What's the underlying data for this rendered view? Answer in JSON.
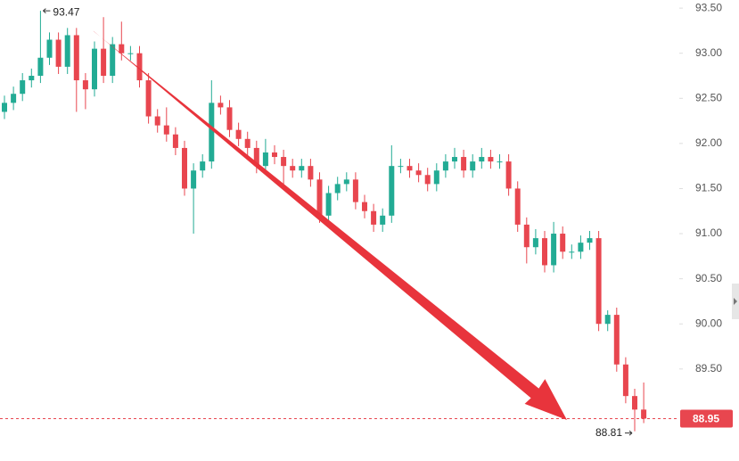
{
  "chart_data": {
    "type": "candlestick",
    "open": [
      92.35,
      92.45,
      92.55,
      92.7,
      92.75,
      92.95,
      93.15,
      92.85,
      93.2,
      92.7,
      92.6,
      93.05,
      92.75,
      93.1,
      93.0,
      93.0,
      92.7,
      92.3,
      92.2,
      92.1,
      91.95,
      91.5,
      91.7,
      91.8,
      92.45,
      92.4,
      92.15,
      92.05,
      91.95,
      91.75,
      91.9,
      91.85,
      91.75,
      91.7,
      91.75,
      91.6,
      91.2,
      91.45,
      91.55,
      91.6,
      91.35,
      91.25,
      91.1,
      91.2,
      91.75,
      91.75,
      91.7,
      91.65,
      91.55,
      91.7,
      91.8,
      91.85,
      91.7,
      91.8,
      91.85,
      91.8,
      91.8,
      91.5,
      91.1,
      90.85,
      90.95,
      90.65,
      91.0,
      90.8,
      90.8,
      90.9,
      90.95,
      90.0,
      90.1,
      89.55,
      89.2,
      89.05
    ],
    "high": [
      92.53,
      92.63,
      92.78,
      92.83,
      93.47,
      93.23,
      93.23,
      93.28,
      93.28,
      92.78,
      93.13,
      93.4,
      93.18,
      93.35,
      93.08,
      93.08,
      92.78,
      92.38,
      92.4,
      92.18,
      92.03,
      91.78,
      91.88,
      92.7,
      92.53,
      92.48,
      92.23,
      92.13,
      92.03,
      92.05,
      91.98,
      91.93,
      91.83,
      91.83,
      91.83,
      91.68,
      91.53,
      91.63,
      91.68,
      91.68,
      91.43,
      91.33,
      91.28,
      91.98,
      91.83,
      91.83,
      91.78,
      91.73,
      91.78,
      91.88,
      91.95,
      91.93,
      91.88,
      91.95,
      91.93,
      91.88,
      91.88,
      91.58,
      91.18,
      91.05,
      91.03,
      91.13,
      91.08,
      90.88,
      90.98,
      91.03,
      91.03,
      90.15,
      90.18,
      89.63,
      89.28,
      89.35
    ],
    "low": [
      92.27,
      92.37,
      92.47,
      92.62,
      92.67,
      92.87,
      92.77,
      92.77,
      92.35,
      92.38,
      92.52,
      92.67,
      92.67,
      92.92,
      92.92,
      92.62,
      92.22,
      92.12,
      92.02,
      91.87,
      91.42,
      91.0,
      91.62,
      91.72,
      92.32,
      92.07,
      91.97,
      91.87,
      91.67,
      91.67,
      91.77,
      91.5,
      91.62,
      91.62,
      91.52,
      91.12,
      91.12,
      91.37,
      91.47,
      91.27,
      91.17,
      91.02,
      91.02,
      91.12,
      91.67,
      91.62,
      91.57,
      91.47,
      91.47,
      91.62,
      91.72,
      91.62,
      91.62,
      91.72,
      91.72,
      91.72,
      91.42,
      91.02,
      90.67,
      90.77,
      90.57,
      90.57,
      90.72,
      90.72,
      90.72,
      90.82,
      89.92,
      89.92,
      89.47,
      89.12,
      88.81,
      88.9
    ],
    "close": [
      92.45,
      92.55,
      92.7,
      92.75,
      92.95,
      93.15,
      92.85,
      93.2,
      92.7,
      92.6,
      93.05,
      92.75,
      93.1,
      93.0,
      93.0,
      92.7,
      92.3,
      92.2,
      92.1,
      91.95,
      91.5,
      91.7,
      91.8,
      92.45,
      92.4,
      92.15,
      92.05,
      91.95,
      91.75,
      91.9,
      91.85,
      91.75,
      91.7,
      91.75,
      91.6,
      91.2,
      91.45,
      91.55,
      91.6,
      91.35,
      91.25,
      91.1,
      91.2,
      91.75,
      91.75,
      91.7,
      91.65,
      91.55,
      91.7,
      91.8,
      91.85,
      91.7,
      91.8,
      91.85,
      91.8,
      91.8,
      91.5,
      91.1,
      90.85,
      90.95,
      90.65,
      91.0,
      90.8,
      90.8,
      90.9,
      90.95,
      90.0,
      90.1,
      89.55,
      89.2,
      89.05,
      88.95
    ],
    "up_color": "#22ab94",
    "down_color": "#e8464f",
    "ylim": [
      88.48,
      93.59
    ],
    "yticks": [
      {
        "value": 89.5,
        "label": "89.50"
      },
      {
        "value": 90,
        "label": "90.00"
      },
      {
        "value": 90.5,
        "label": "90.50"
      },
      {
        "value": 91,
        "label": "91.00"
      },
      {
        "value": 91.5,
        "label": "91.50"
      },
      {
        "value": 92,
        "label": "92.00"
      },
      {
        "value": 92.5,
        "label": "92.50"
      },
      {
        "value": 93,
        "label": "93.00"
      },
      {
        "value": 93.5,
        "label": "93.50"
      }
    ],
    "high_label": 93.47,
    "low_label": 88.81,
    "last_price": 88.95
  }
}
